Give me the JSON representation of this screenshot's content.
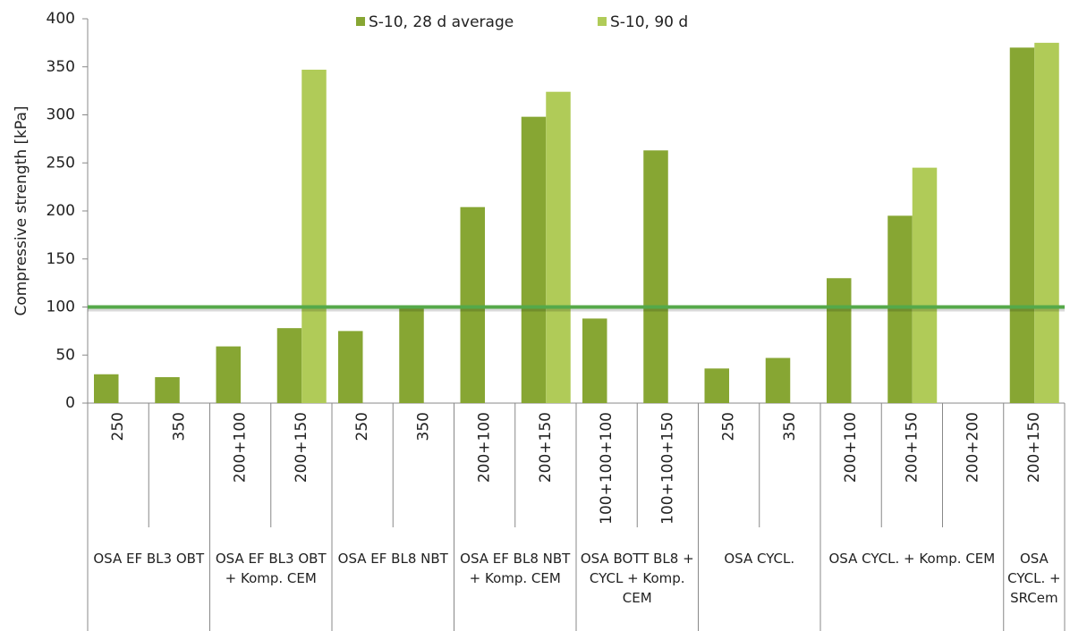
{
  "chart_data": {
    "type": "bar",
    "y_label": "Compressive strength [kPa]",
    "groups": [
      {
        "label": "OSA EF BL3 OBT",
        "categories": [
          "250",
          "350"
        ]
      },
      {
        "label": "OSA EF BL3 OBT + Komp. CEM",
        "categories": [
          "200+100",
          "200+150"
        ]
      },
      {
        "label": "OSA EF BL8 NBT",
        "categories": [
          "250",
          "350"
        ]
      },
      {
        "label": "OSA EF BL8 NBT + Komp. CEM",
        "categories": [
          "200+100",
          "200+150"
        ]
      },
      {
        "label": "OSA BOTT BL8 + CYCL + Komp. CEM",
        "categories": [
          "100+100+100",
          "100+100+150"
        ]
      },
      {
        "label": "OSA CYCL.",
        "categories": [
          "250",
          "350"
        ]
      },
      {
        "label": "OSA CYCL. + Komp. CEM",
        "categories": [
          "200+100",
          "200+150",
          "200+200"
        ]
      },
      {
        "label": "OSA CYCL. + SRCem",
        "categories": [
          "200+150"
        ]
      }
    ],
    "series": [
      {
        "name": "S-10, 28 d average",
        "color": "#87a633",
        "values": [
          30,
          27,
          59,
          78,
          75,
          100,
          204,
          298,
          88,
          263,
          36,
          47,
          130,
          195,
          null,
          370
        ]
      },
      {
        "name": "S-10, 90 d",
        "color": "#b0cb58",
        "values": [
          null,
          null,
          null,
          347,
          null,
          null,
          null,
          324,
          null,
          null,
          null,
          null,
          null,
          245,
          null,
          375
        ]
      }
    ],
    "reference_line": 100,
    "reference_color": "#55a94a",
    "ylim": [
      0,
      400
    ],
    "yticks": [
      0,
      50,
      100,
      150,
      200,
      250,
      300,
      350,
      400
    ],
    "legend": "top"
  }
}
